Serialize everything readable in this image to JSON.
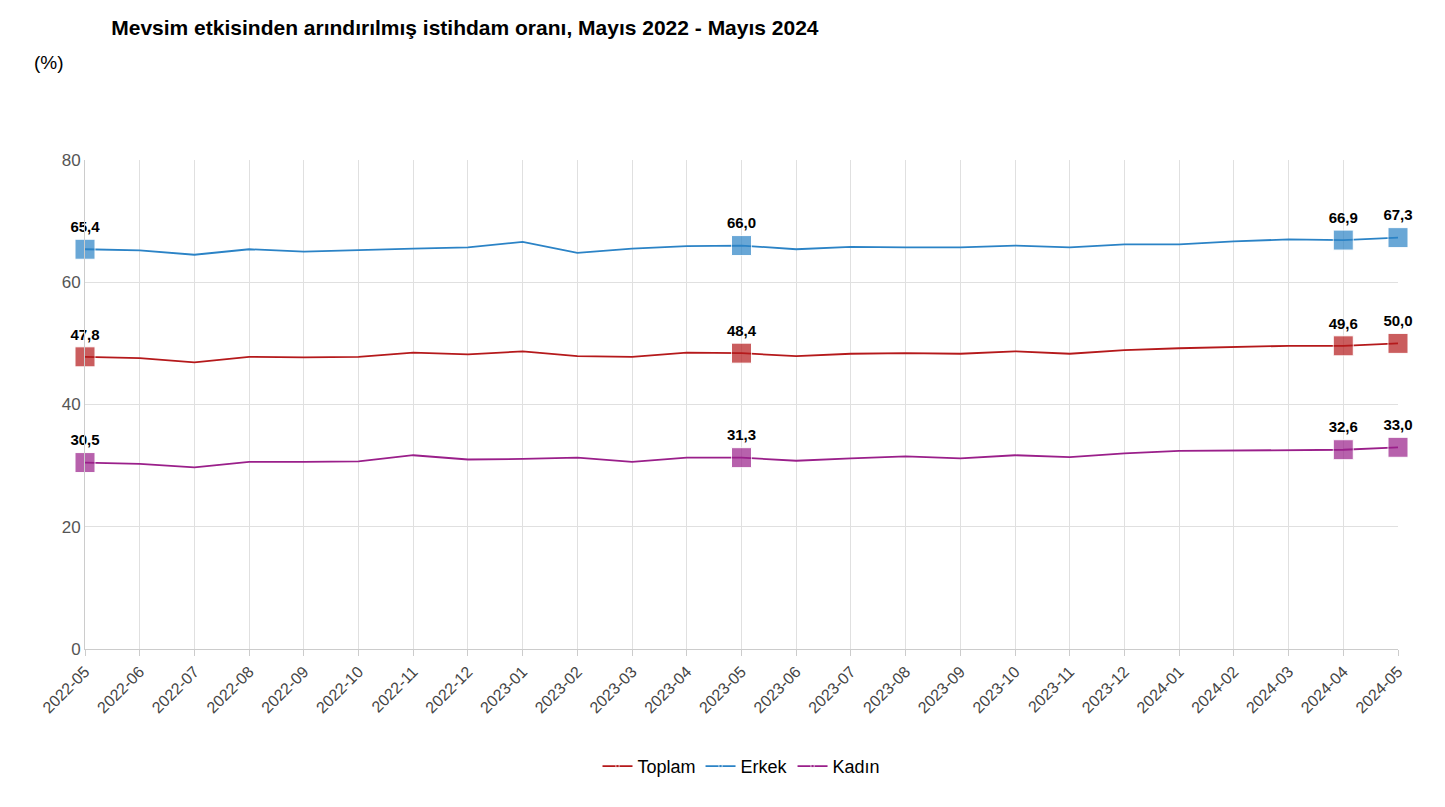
{
  "chart_data": {
    "type": "line",
    "title": "Mevsim etkisinden arındırılmış istihdam oranı, Mayıs 2022 - Mayıs 2024",
    "subtitle": "(%)",
    "categories": [
      "2022-05",
      "2022-06",
      "2022-07",
      "2022-08",
      "2022-09",
      "2022-10",
      "2022-11",
      "2022-12",
      "2023-01",
      "2023-02",
      "2023-03",
      "2023-04",
      "2023-05",
      "2023-06",
      "2023-07",
      "2023-08",
      "2023-09",
      "2023-10",
      "2023-11",
      "2023-12",
      "2024-01",
      "2024-02",
      "2024-03",
      "2024-04",
      "2024-05"
    ],
    "series": [
      {
        "name": "Toplam",
        "color": "#b5191b",
        "marker": "square",
        "values": [
          47.8,
          47.6,
          46.9,
          47.8,
          47.7,
          47.8,
          48.5,
          48.2,
          48.7,
          47.9,
          47.8,
          48.5,
          48.4,
          47.9,
          48.3,
          48.4,
          48.3,
          48.7,
          48.3,
          48.9,
          49.2,
          49.4,
          49.6,
          49.6,
          50.0
        ],
        "value_labels": [
          "47,8",
          null,
          null,
          null,
          null,
          null,
          null,
          null,
          null,
          null,
          null,
          null,
          "48,4",
          null,
          null,
          null,
          null,
          null,
          null,
          null,
          null,
          null,
          null,
          "49,6",
          "50,0"
        ]
      },
      {
        "name": "Erkek",
        "color": "#2b83c6",
        "marker": "square",
        "values": [
          65.4,
          65.2,
          64.5,
          65.4,
          65.0,
          65.3,
          65.5,
          65.7,
          66.6,
          64.8,
          65.5,
          65.9,
          66.0,
          65.4,
          65.8,
          65.7,
          65.7,
          66.0,
          65.7,
          66.2,
          66.2,
          66.7,
          67.0,
          66.9,
          67.3
        ],
        "value_labels": [
          "65,4",
          null,
          null,
          null,
          null,
          null,
          null,
          null,
          null,
          null,
          null,
          null,
          "66,0",
          null,
          null,
          null,
          null,
          null,
          null,
          null,
          null,
          null,
          null,
          "66,9",
          "67,3"
        ]
      },
      {
        "name": "Kadın",
        "color": "#9a1f8a",
        "marker": "square",
        "values": [
          30.5,
          30.3,
          29.7,
          30.6,
          30.6,
          30.7,
          31.7,
          31.0,
          31.1,
          31.3,
          30.6,
          31.3,
          31.3,
          30.8,
          31.2,
          31.5,
          31.2,
          31.7,
          31.4,
          32.0,
          32.4,
          32.5,
          32.5,
          32.6,
          33.0
        ],
        "value_labels": [
          "30,5",
          null,
          null,
          null,
          null,
          null,
          null,
          null,
          null,
          null,
          null,
          null,
          "31,3",
          null,
          null,
          null,
          null,
          null,
          null,
          null,
          null,
          null,
          null,
          "32,6",
          "33,0"
        ]
      }
    ],
    "ylim": [
      0,
      80
    ],
    "yticks": [
      0,
      20,
      40,
      60,
      80
    ],
    "grid": true,
    "legend": "bottom",
    "data_labels": true
  }
}
